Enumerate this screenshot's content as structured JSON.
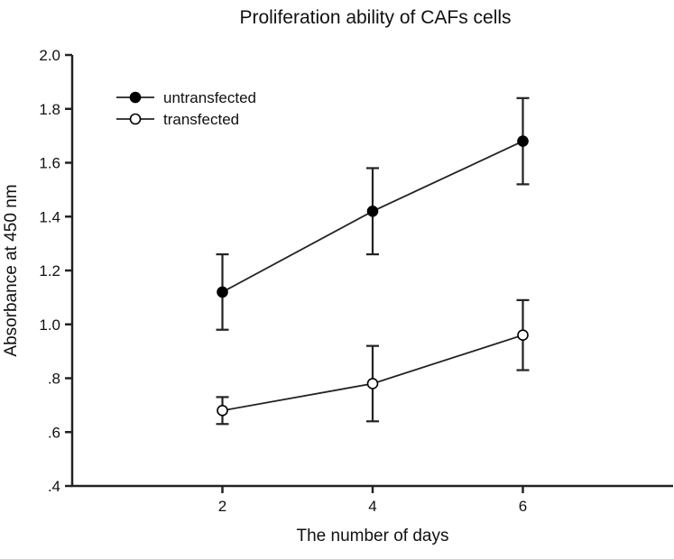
{
  "chart_data": {
    "type": "line",
    "title": "Proliferation ability of  CAFs cells",
    "xlabel": "The number of days",
    "ylabel": "Absorbance at 450 nm",
    "xlim": [
      0,
      8
    ],
    "ylim": [
      0.4,
      2.0
    ],
    "x_ticks": [
      2,
      4,
      6
    ],
    "x_tick_labels": [
      "2",
      "4",
      "6"
    ],
    "y_ticks": [
      0.4,
      0.6,
      0.8,
      1.0,
      1.2,
      1.4,
      1.6,
      1.8,
      2.0
    ],
    "y_tick_labels": [
      ".4",
      ".6",
      ".8",
      "1.0",
      "1.2",
      "1.4",
      "1.6",
      "1.8",
      "2.0"
    ],
    "grid": false,
    "legend_position": "top-left",
    "x": [
      2,
      4,
      6
    ],
    "series": [
      {
        "name": "untransfected",
        "marker": "filled-circle",
        "color": "#000000",
        "values": [
          1.12,
          1.42,
          1.68
        ],
        "err_upper": [
          1.26,
          1.58,
          1.84
        ],
        "err_lower": [
          0.98,
          1.26,
          1.52
        ]
      },
      {
        "name": "transfected",
        "marker": "open-circle",
        "color": "#000000",
        "values": [
          0.68,
          0.78,
          0.96
        ],
        "err_upper": [
          0.73,
          0.92,
          1.09
        ],
        "err_lower": [
          0.63,
          0.64,
          0.83
        ]
      }
    ]
  }
}
